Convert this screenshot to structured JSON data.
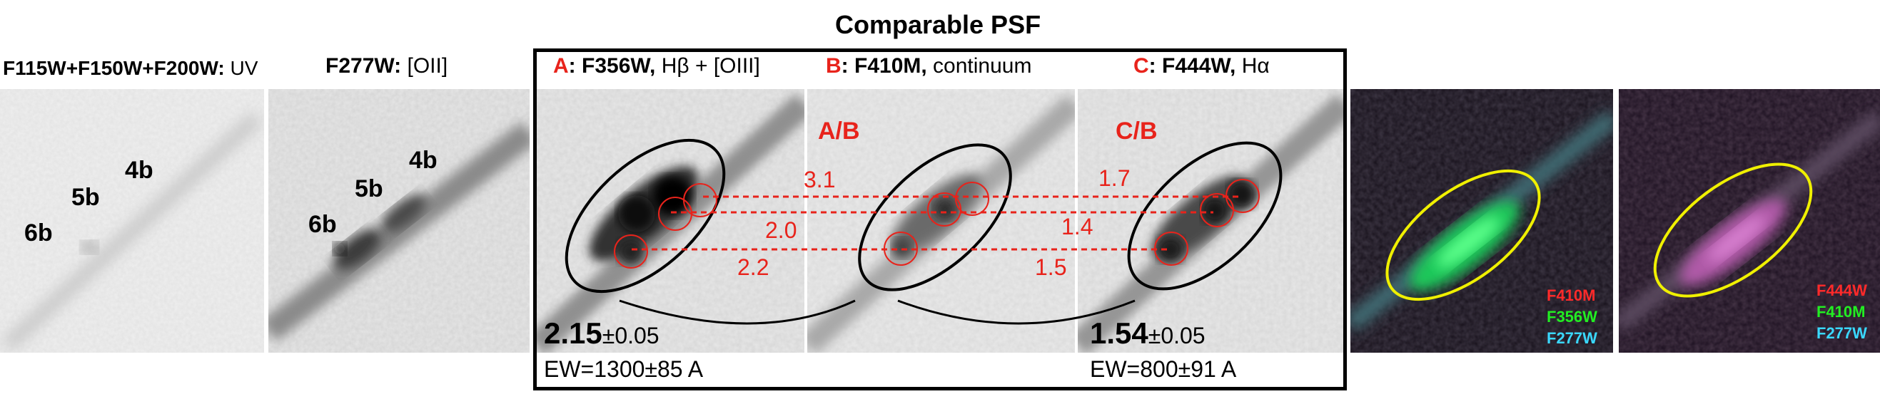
{
  "header": {
    "title": "Comparable PSF"
  },
  "panels": {
    "uv": {
      "label_bold": "F115W+F150W+F200W:",
      "label_rest": " UV",
      "knots": [
        "4b",
        "5b",
        "6b"
      ]
    },
    "oii": {
      "label_bold": "F277W:",
      "label_rest": " [OII]",
      "knots": [
        "4b",
        "5b",
        "6b"
      ]
    },
    "a": {
      "letter": "A",
      "label_bold": ": F356W,",
      "label_rest": " Hβ + [OIII]"
    },
    "b": {
      "letter": "B",
      "label_bold": ": F410M,",
      "label_rest": " continuum"
    },
    "c": {
      "letter": "C",
      "label_bold": ": F444W,",
      "label_rest": " Hα"
    }
  },
  "ratios": {
    "ab": {
      "head": "A/B",
      "values": [
        "3.1",
        "2.0",
        "2.2"
      ]
    },
    "cb": {
      "head": "C/B",
      "values": [
        "1.7",
        "1.4",
        "1.5"
      ]
    }
  },
  "stats": {
    "a": {
      "value": "2.15",
      "err": "±0.05",
      "ew": "EW=1300±85 A"
    },
    "c": {
      "value": "1.54",
      "err": "±0.05",
      "ew": "EW=800±91 A"
    }
  },
  "rgb1": {
    "legend": [
      "F410M",
      "F356W",
      "F277W"
    ]
  },
  "rgb2": {
    "legend": [
      "F444W",
      "F410M",
      "F277W"
    ]
  },
  "colors": {
    "accent_red": "#e8231b",
    "ellipse_yellow": "#f0f000",
    "legend_red": "#ff2a2a",
    "legend_green": "#22ee22",
    "legend_cyan": "#3ad8ff"
  }
}
